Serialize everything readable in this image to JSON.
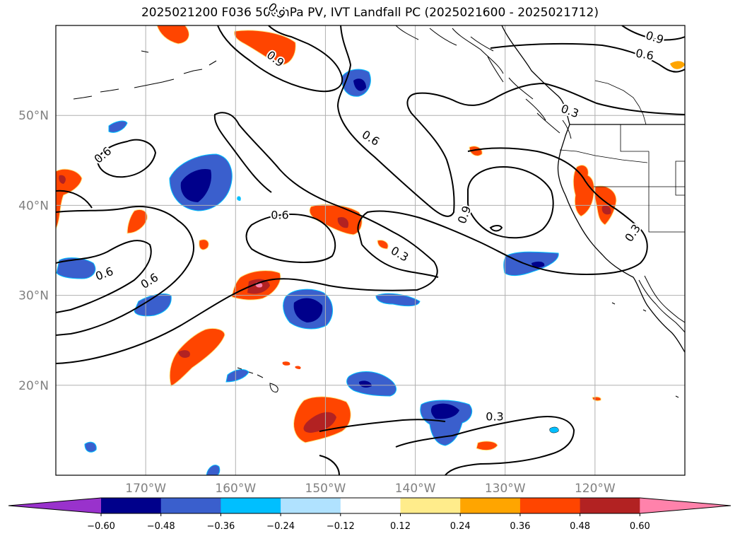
{
  "title": "2025021200 F036 500 hPa PV, IVT Landfall PC (2025021600 - 2025021712)",
  "chart_data": {
    "type": "map",
    "lon_range": [
      -180,
      -110
    ],
    "lat_range": [
      10,
      60
    ],
    "lon_ticks": [
      {
        "value": -170,
        "label": "170°W"
      },
      {
        "value": -160,
        "label": "160°W"
      },
      {
        "value": -150,
        "label": "150°W"
      },
      {
        "value": -140,
        "label": "140°W"
      },
      {
        "value": -130,
        "label": "130°W"
      },
      {
        "value": -120,
        "label": "120°W"
      }
    ],
    "lat_ticks": [
      {
        "value": 20,
        "label": "20°N"
      },
      {
        "value": 30,
        "label": "30°N"
      },
      {
        "value": 40,
        "label": "40°N"
      },
      {
        "value": 50,
        "label": "50°N"
      }
    ],
    "grid": true,
    "contour_labels": [
      "0.9",
      "0.9",
      "0.6",
      "0.6",
      "0.3",
      "0.6",
      "0.6",
      "0.9",
      "0.3",
      "0.6",
      "0.9",
      "0.6",
      "0.3",
      "0.3"
    ],
    "colorbar": {
      "extend": "both",
      "colors": [
        "#9932cc",
        "#00008b",
        "#3a5fcd",
        "#00bfff",
        "#b0e2ff",
        "#ffffff",
        "#ffec8b",
        "#ffa500",
        "#ff4500",
        "#b22222",
        "#ff82ab"
      ],
      "tick_labels": [
        "−0.60",
        "−0.48",
        "−0.36",
        "−0.24",
        "−0.12",
        "0.12",
        "0.24",
        "0.36",
        "0.48",
        "0.60"
      ]
    }
  }
}
